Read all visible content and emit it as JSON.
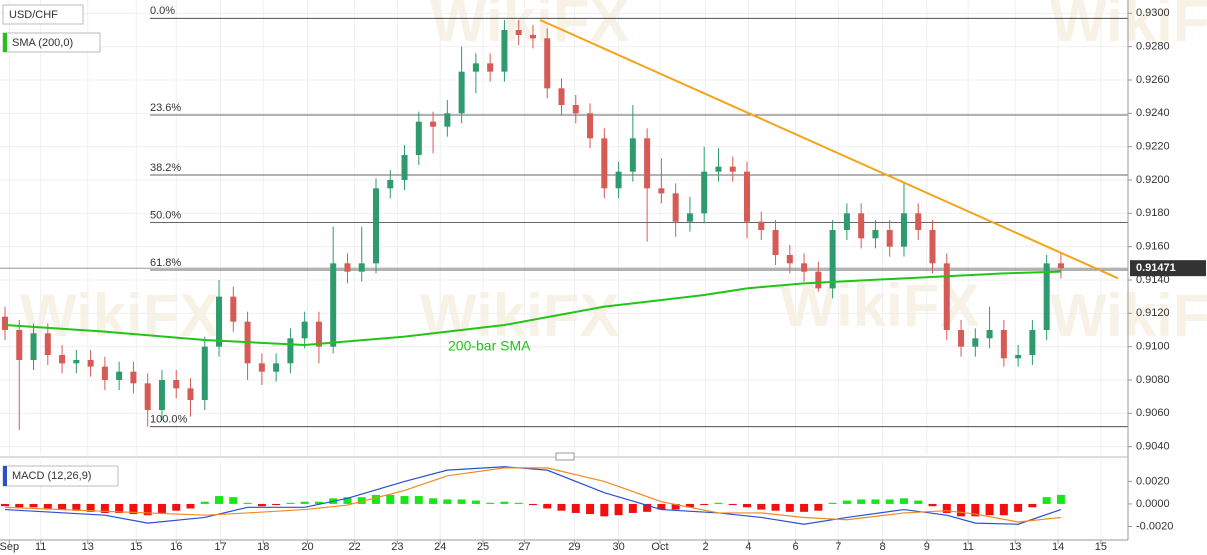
{
  "watermark": "WikiFX",
  "chart_data": [
    {
      "type": "candlestick",
      "title": "USD/CHF",
      "xlim": [
        -0.35,
        78.7
      ],
      "xticks": [
        {
          "value": 0.3,
          "label": "Sep"
        },
        {
          "value": 2.5,
          "label": "11"
        },
        {
          "value": 5.8,
          "label": "13"
        },
        {
          "value": 9.2,
          "label": "15"
        },
        {
          "value": 12.0,
          "label": "16"
        },
        {
          "value": 15.1,
          "label": "17"
        },
        {
          "value": 18.1,
          "label": "18"
        },
        {
          "value": 21.2,
          "label": "20"
        },
        {
          "value": 24.5,
          "label": "22"
        },
        {
          "value": 27.5,
          "label": "23"
        },
        {
          "value": 30.5,
          "label": "24"
        },
        {
          "value": 33.5,
          "label": "25"
        },
        {
          "value": 36.4,
          "label": "27"
        },
        {
          "value": 39.9,
          "label": "29"
        },
        {
          "value": 43.0,
          "label": "30"
        },
        {
          "value": 45.9,
          "label": "Oct"
        },
        {
          "value": 49.1,
          "label": "2"
        },
        {
          "value": 52.1,
          "label": "4"
        },
        {
          "value": 55.4,
          "label": "6"
        },
        {
          "value": 58.4,
          "label": "7"
        },
        {
          "value": 61.5,
          "label": "8"
        },
        {
          "value": 64.6,
          "label": "9"
        },
        {
          "value": 67.5,
          "label": "11"
        },
        {
          "value": 70.8,
          "label": "13"
        },
        {
          "value": 73.8,
          "label": "14"
        },
        {
          "value": 76.8,
          "label": "15"
        }
      ],
      "ylim": [
        0.9035,
        0.9308
      ],
      "yticks": [
        {
          "value": 0.904,
          "label": "0.9040"
        },
        {
          "value": 0.906,
          "label": "0.9060"
        },
        {
          "value": 0.908,
          "label": "0.9080"
        },
        {
          "value": 0.91,
          "label": "0.9100"
        },
        {
          "value": 0.912,
          "label": "0.9120"
        },
        {
          "value": 0.914,
          "label": "0.9140"
        },
        {
          "value": 0.916,
          "label": "0.9160"
        },
        {
          "value": 0.918,
          "label": "0.9180"
        },
        {
          "value": 0.92,
          "label": "0.9200"
        },
        {
          "value": 0.922,
          "label": "0.9220"
        },
        {
          "value": 0.924,
          "label": "0.9240"
        },
        {
          "value": 0.926,
          "label": "0.9260"
        },
        {
          "value": 0.928,
          "label": "0.9280"
        },
        {
          "value": 0.93,
          "label": "0.9300"
        }
      ],
      "grid": true,
      "up_color": "#2e9b6e",
      "down_color": "#d65a55",
      "open": [
        0.9118,
        0.911,
        0.9092,
        0.9108,
        0.9095,
        0.909,
        0.9092,
        0.9088,
        0.908,
        0.9085,
        0.9078,
        0.9062,
        0.908,
        0.9075,
        0.9068,
        0.91,
        0.913,
        0.9115,
        0.909,
        0.9085,
        0.909,
        0.9105,
        0.9115,
        0.91,
        0.915,
        0.9145,
        0.915,
        0.9195,
        0.92,
        0.9215,
        0.9235,
        0.9232,
        0.924,
        0.9265,
        0.927,
        0.9265,
        0.929,
        0.9287,
        0.9285,
        0.9255,
        0.9245,
        0.924,
        0.9225,
        0.9195,
        0.9205,
        0.9225,
        0.9195,
        0.9192,
        0.9175,
        0.918,
        0.9205,
        0.9208,
        0.9205,
        0.9175,
        0.917,
        0.9155,
        0.915,
        0.9145,
        0.9135,
        0.917,
        0.918,
        0.9165,
        0.917,
        0.916,
        0.918,
        0.917,
        0.915,
        0.911,
        0.91,
        0.9105,
        0.911,
        0.9093,
        0.9095,
        0.911,
        0.915
      ],
      "high": [
        0.9124,
        0.9116,
        0.9114,
        0.9114,
        0.9101,
        0.9098,
        0.9098,
        0.9094,
        0.9091,
        0.9091,
        0.9084,
        0.9086,
        0.9086,
        0.9081,
        0.9106,
        0.914,
        0.9136,
        0.9121,
        0.9096,
        0.9096,
        0.9111,
        0.9121,
        0.9121,
        0.9172,
        0.9156,
        0.9172,
        0.9201,
        0.9206,
        0.9221,
        0.9241,
        0.9241,
        0.9248,
        0.928,
        0.9276,
        0.9276,
        0.9296,
        0.9296,
        0.9293,
        0.9291,
        0.9261,
        0.9251,
        0.9246,
        0.9231,
        0.9211,
        0.9245,
        0.9231,
        0.9213,
        0.9198,
        0.919,
        0.922,
        0.9219,
        0.9214,
        0.9211,
        0.9181,
        0.9176,
        0.9161,
        0.9156,
        0.9151,
        0.9176,
        0.9186,
        0.9186,
        0.9176,
        0.9176,
        0.9198,
        0.9186,
        0.9176,
        0.9156,
        0.9116,
        0.9111,
        0.9124,
        0.9116,
        0.9101,
        0.9116,
        0.9155,
        0.9156
      ],
      "low": [
        0.9104,
        0.905,
        0.9086,
        0.9089,
        0.9084,
        0.9084,
        0.9082,
        0.9074,
        0.9074,
        0.9072,
        0.9052,
        0.9056,
        0.9069,
        0.9058,
        0.9062,
        0.9094,
        0.9109,
        0.908,
        0.9077,
        0.9079,
        0.9084,
        0.9099,
        0.909,
        0.9096,
        0.9138,
        0.9139,
        0.9144,
        0.9189,
        0.9194,
        0.9209,
        0.9216,
        0.9226,
        0.9234,
        0.9252,
        0.9259,
        0.9259,
        0.9281,
        0.9279,
        0.9249,
        0.9239,
        0.9234,
        0.9219,
        0.9189,
        0.9189,
        0.9199,
        0.9163,
        0.9186,
        0.9166,
        0.9169,
        0.9174,
        0.9199,
        0.9199,
        0.9165,
        0.9164,
        0.9149,
        0.9144,
        0.9139,
        0.9133,
        0.9129,
        0.9164,
        0.9159,
        0.9159,
        0.9154,
        0.9154,
        0.9164,
        0.9144,
        0.9104,
        0.9094,
        0.9094,
        0.9099,
        0.9088,
        0.9088,
        0.9089,
        0.9104,
        0.9141
      ],
      "close": [
        0.911,
        0.9092,
        0.9108,
        0.9095,
        0.909,
        0.9092,
        0.9088,
        0.908,
        0.9085,
        0.9078,
        0.9062,
        0.908,
        0.9075,
        0.9068,
        0.91,
        0.913,
        0.9115,
        0.909,
        0.9085,
        0.909,
        0.9105,
        0.9115,
        0.91,
        0.915,
        0.9145,
        0.915,
        0.9195,
        0.92,
        0.9215,
        0.9235,
        0.9232,
        0.924,
        0.9265,
        0.927,
        0.9265,
        0.929,
        0.9287,
        0.9285,
        0.9255,
        0.9245,
        0.924,
        0.9225,
        0.9195,
        0.9205,
        0.9225,
        0.9195,
        0.9192,
        0.9175,
        0.918,
        0.9205,
        0.9208,
        0.9205,
        0.9175,
        0.917,
        0.9155,
        0.915,
        0.9145,
        0.9135,
        0.917,
        0.918,
        0.9165,
        0.917,
        0.916,
        0.918,
        0.917,
        0.915,
        0.911,
        0.91,
        0.9105,
        0.911,
        0.9093,
        0.9095,
        0.911,
        0.915,
        0.9147
      ],
      "sma": {
        "name": "SMA (200,0)",
        "label": "200-bar SMA",
        "color": "#22c41a",
        "x": [
          0,
          7,
          14,
          21,
          28,
          35,
          42,
          49,
          52,
          56,
          63,
          70,
          74
        ],
        "values": [
          0.9113,
          0.9109,
          0.9104,
          0.9101,
          0.9106,
          0.9113,
          0.9124,
          0.9131,
          0.9135,
          0.9138,
          0.9141,
          0.9144,
          0.9145
        ]
      },
      "fibonacci": {
        "color": "#333333",
        "levels": [
          {
            "value": 0.9297,
            "label": "0.0%"
          },
          {
            "value": 0.9239,
            "label": "23.6%"
          },
          {
            "value": 0.9203,
            "label": "38.2%"
          },
          {
            "value": 0.91745,
            "label": "50.0%"
          },
          {
            "value": 0.9146,
            "label": "61.8%"
          },
          {
            "value": 0.9052,
            "label": "100.0%"
          }
        ]
      },
      "trendline": {
        "color": "#f5a31a",
        "x": [
          37.5,
          78
        ],
        "values": [
          0.9296,
          0.9141
        ]
      },
      "last_price": 0.91471
    },
    {
      "type": "macd",
      "title": "MACD (12,26,9)",
      "ylim": [
        -0.0032,
        0.0039
      ],
      "yticks": [
        {
          "value": 0.002,
          "label": "0.0020"
        },
        {
          "value": 0,
          "label": "0.0000"
        },
        {
          "value": -0.002,
          "label": "-0.0020"
        }
      ],
      "histogram": {
        "up_color": "#19e619",
        "down_color": "#f01010",
        "values": [
          -0.0002,
          -0.0003,
          -0.0003,
          -0.0004,
          -0.0005,
          -0.0006,
          -0.0007,
          -0.0008,
          -0.0008,
          -0.0009,
          -0.001,
          -0.0008,
          -0.0006,
          -0.0004,
          0.0002,
          0.0007,
          0.0006,
          0.0001,
          -0.0002,
          -0.0001,
          0.0001,
          0.0002,
          0.0002,
          0.0005,
          0.0006,
          0.0006,
          0.0008,
          0.0008,
          0.0007,
          0.0007,
          0.0005,
          0.0004,
          0.0004,
          0.0003,
          0.0001,
          0.0002,
          0.0001,
          -0.0001,
          -0.0004,
          -0.0006,
          -0.0008,
          -0.0009,
          -0.0011,
          -0.001,
          -0.0008,
          -0.0007,
          -0.0005,
          -0.0005,
          -0.0003,
          -0.0001,
          0.0001,
          -0.0001,
          -0.0003,
          -0.0005,
          -0.0006,
          -0.0007,
          -0.0007,
          -0.0006,
          0.0001,
          0.0003,
          0.0004,
          0.0004,
          0.0004,
          0.0005,
          0.0003,
          -0.0002,
          -0.0008,
          -0.0011,
          -0.0011,
          -0.001,
          -0.001,
          -0.0007,
          -0.0003,
          0.0006,
          0.0008
        ]
      },
      "series": [
        {
          "color": "#2a50d0",
          "x": [
            0,
            7,
            10,
            14,
            17,
            21,
            24,
            28,
            31,
            35,
            38,
            42,
            46,
            50,
            53,
            56,
            59,
            63,
            66,
            68,
            71,
            74
          ],
          "values": [
            -0.0005,
            -0.001,
            -0.0017,
            -0.0012,
            -0.0003,
            -0.0003,
            0.0005,
            0.002,
            0.003,
            0.0033,
            0.003,
            0.001,
            -0.0005,
            -0.0008,
            -0.0012,
            -0.0018,
            -0.0012,
            -0.0005,
            -0.001,
            -0.0017,
            -0.0018,
            -0.0005
          ]
        },
        {
          "color": "#f08a24",
          "x": [
            0,
            10,
            14,
            17,
            21,
            24,
            28,
            31,
            35,
            38,
            42,
            46,
            50,
            53,
            56,
            59,
            63,
            66,
            68,
            71,
            74
          ],
          "values": [
            -0.0003,
            -0.0008,
            -0.001,
            -0.0008,
            -0.0005,
            -0.0001,
            0.0012,
            0.0025,
            0.0032,
            0.0032,
            0.002,
            0.0002,
            -0.0008,
            -0.0008,
            -0.0012,
            -0.0014,
            -0.0008,
            -0.0006,
            -0.0009,
            -0.0016,
            -0.0012
          ]
        }
      ]
    }
  ]
}
